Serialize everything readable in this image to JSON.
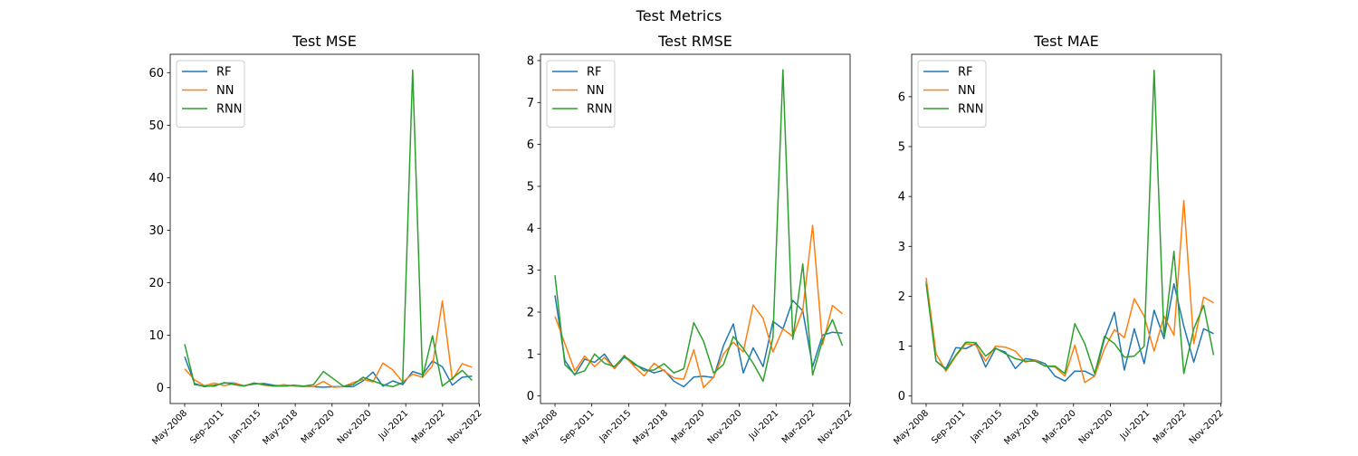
{
  "figure": {
    "title": "Test Metrics"
  },
  "colors": {
    "RF": "#1f77b4",
    "NN": "#ff7f0e",
    "RNN": "#2ca02c"
  },
  "chart_data": [
    {
      "type": "line",
      "title": "Test MSE",
      "xlabel": "",
      "ylabel": "",
      "x_ticks": [
        "May-2008",
        "Sep-2011",
        "Jan-2015",
        "May-2018",
        "Mar-2020",
        "Nov-2020",
        "Jul-2021",
        "Mar-2022",
        "Nov-2022"
      ],
      "y_ticks": [
        0,
        10,
        20,
        30,
        40,
        50,
        60
      ],
      "ylim": [
        -3,
        63.5
      ],
      "legend": "upper left",
      "grid": false,
      "series": [
        {
          "name": "RF",
          "values": [
            5.9,
            0.8,
            0.2,
            0.5,
            0.9,
            0.9,
            0.4,
            0.7,
            0.8,
            0.5,
            0.3,
            0.4,
            0.3,
            0.2,
            0.1,
            0.2,
            0.2,
            0.2,
            1.3,
            3.0,
            0.3,
            1.3,
            0.6,
            3.1,
            2.5,
            5.1,
            4.0,
            0.5,
            2.0,
            2.2
          ]
        },
        {
          "name": "NN",
          "values": [
            3.6,
            1.5,
            0.4,
            0.9,
            0.4,
            0.8,
            0.4,
            0.9,
            0.5,
            0.3,
            0.6,
            0.3,
            0.2,
            0.2,
            1.2,
            0.1,
            0.2,
            1.0,
            1.6,
            1.1,
            4.7,
            3.4,
            1.1,
            2.6,
            2.0,
            4.2,
            16.5,
            1.5,
            4.6,
            3.9
          ]
        },
        {
          "name": "RNN",
          "values": [
            8.3,
            0.6,
            0.3,
            0.3,
            1.0,
            0.6,
            0.3,
            0.9,
            0.6,
            0.3,
            0.3,
            0.5,
            0.3,
            0.6,
            3.1,
            1.7,
            0.3,
            0.6,
            2.0,
            1.3,
            0.6,
            0.2,
            1.0,
            60.5,
            2.0,
            9.9,
            0.3,
            1.8,
            3.3,
            1.4
          ]
        }
      ]
    },
    {
      "type": "line",
      "title": "Test RMSE",
      "xlabel": "",
      "ylabel": "",
      "x_ticks": [
        "May-2008",
        "Sep-2011",
        "Jan-2015",
        "May-2018",
        "Mar-2020",
        "Nov-2020",
        "Jul-2021",
        "Mar-2022",
        "Nov-2022"
      ],
      "y_ticks": [
        0,
        1,
        2,
        3,
        4,
        5,
        6,
        7,
        8
      ],
      "ylim": [
        -0.18,
        8.15
      ],
      "legend": "upper left",
      "grid": false,
      "series": [
        {
          "name": "RF",
          "values": [
            2.4,
            0.85,
            0.5,
            0.88,
            0.8,
            1.0,
            0.65,
            0.93,
            0.75,
            0.65,
            0.55,
            0.62,
            0.35,
            0.22,
            0.45,
            0.47,
            0.44,
            1.2,
            1.72,
            0.55,
            1.15,
            0.7,
            1.78,
            1.6,
            2.28,
            2.03,
            0.7,
            1.45,
            1.52,
            1.5
          ]
        },
        {
          "name": "NN",
          "values": [
            1.9,
            1.25,
            0.6,
            0.95,
            0.7,
            0.92,
            0.65,
            0.97,
            0.7,
            0.48,
            0.78,
            0.6,
            0.43,
            0.4,
            1.1,
            0.2,
            0.45,
            1.0,
            1.28,
            1.05,
            2.17,
            1.85,
            1.05,
            1.6,
            1.42,
            2.05,
            4.07,
            1.22,
            2.16,
            1.96
          ]
        },
        {
          "name": "RNN",
          "values": [
            2.88,
            0.75,
            0.52,
            0.6,
            1.0,
            0.78,
            0.7,
            0.95,
            0.78,
            0.6,
            0.62,
            0.77,
            0.55,
            0.65,
            1.75,
            1.3,
            0.55,
            0.75,
            1.42,
            1.13,
            0.78,
            0.35,
            1.4,
            7.78,
            1.35,
            3.15,
            0.5,
            1.33,
            1.82,
            1.2
          ]
        }
      ]
    },
    {
      "type": "line",
      "title": "Test MAE",
      "xlabel": "",
      "ylabel": "",
      "x_ticks": [
        "May-2008",
        "Sep-2011",
        "Jan-2015",
        "May-2018",
        "Mar-2020",
        "Nov-2020",
        "Jul-2021",
        "Mar-2022",
        "Nov-2022"
      ],
      "y_ticks": [
        0,
        1,
        2,
        3,
        4,
        5,
        6
      ],
      "ylim": [
        -0.15,
        6.85
      ],
      "legend": "upper left",
      "grid": false,
      "series": [
        {
          "name": "RF",
          "values": [
            2.3,
            0.7,
            0.55,
            0.97,
            0.95,
            1.05,
            0.58,
            0.95,
            0.88,
            0.55,
            0.75,
            0.72,
            0.65,
            0.4,
            0.3,
            0.5,
            0.5,
            0.4,
            1.15,
            1.68,
            0.52,
            1.35,
            0.65,
            1.72,
            1.15,
            2.25,
            1.4,
            0.68,
            1.35,
            1.25
          ]
        },
        {
          "name": "NN",
          "values": [
            2.37,
            0.85,
            0.5,
            0.8,
            1.05,
            1.02,
            0.7,
            1.0,
            0.98,
            0.9,
            0.68,
            0.72,
            0.6,
            0.58,
            0.4,
            1.02,
            0.27,
            0.4,
            0.95,
            1.33,
            1.17,
            1.95,
            1.6,
            0.9,
            1.6,
            1.22,
            3.92,
            1.05,
            1.98,
            1.87
          ]
        },
        {
          "name": "RNN",
          "values": [
            2.25,
            0.7,
            0.53,
            0.82,
            1.08,
            1.07,
            0.8,
            0.96,
            0.85,
            0.75,
            0.7,
            0.7,
            0.6,
            0.6,
            0.45,
            1.45,
            1.05,
            0.45,
            1.2,
            1.05,
            0.78,
            0.8,
            1.0,
            6.53,
            1.18,
            2.9,
            0.45,
            1.35,
            1.82,
            0.82
          ]
        }
      ]
    }
  ]
}
